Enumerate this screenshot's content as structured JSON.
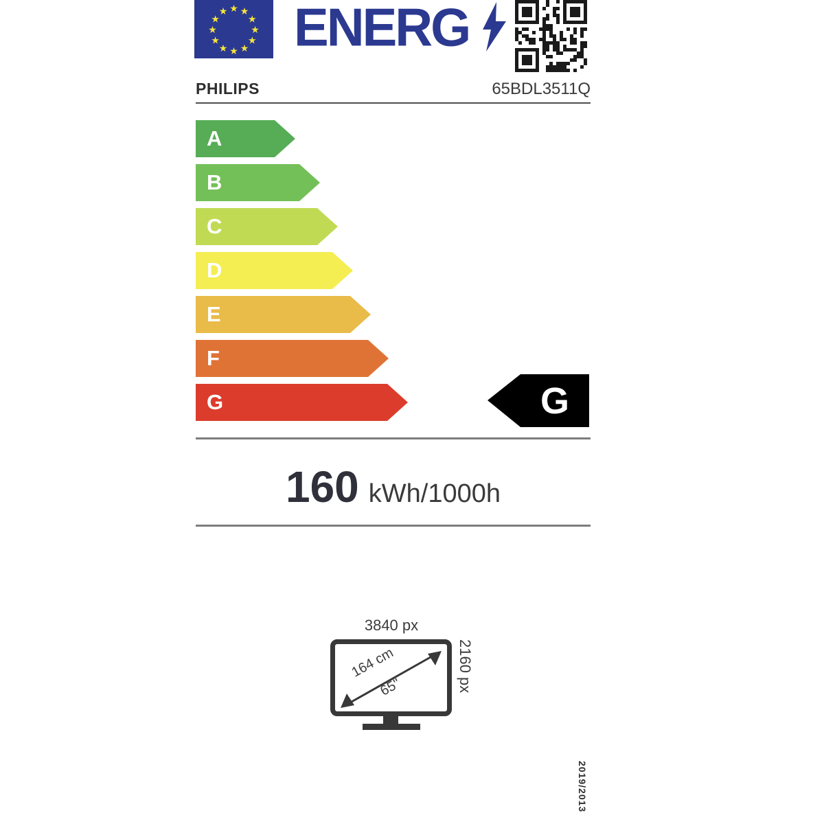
{
  "header": {
    "logo_text": "ENERG",
    "eu_flag_bg": "#2B3990",
    "eu_flag_star_color": "#F6E43A",
    "logo_color": "#2B3990",
    "supplier": "PHILIPS",
    "model": "65BDL3511Q"
  },
  "scale": {
    "classes": [
      {
        "label": "A",
        "color": "#57AC56",
        "total_width": 145
      },
      {
        "label": "B",
        "color": "#74C058",
        "total_width": 181
      },
      {
        "label": "C",
        "color": "#C0DB53",
        "total_width": 207
      },
      {
        "label": "D",
        "color": "#F4EE53",
        "total_width": 229
      },
      {
        "label": "E",
        "color": "#E9BB49",
        "total_width": 255
      },
      {
        "label": "F",
        "color": "#DF7336",
        "total_width": 281
      },
      {
        "label": "G",
        "color": "#DC3C2C",
        "total_width": 309
      }
    ]
  },
  "rating": {
    "class": "G",
    "arrow_color": "#000000"
  },
  "consumption": {
    "value": "160",
    "unit": "kWh/1000h"
  },
  "screen": {
    "horizontal_resolution": "3840 px",
    "vertical_resolution": "2160 px",
    "diagonal_cm": "164 cm",
    "diagonal_inches": "65\""
  },
  "regulation": "2019/2013"
}
